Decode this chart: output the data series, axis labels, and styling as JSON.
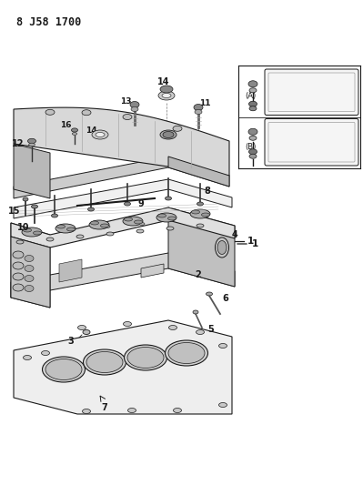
{
  "title": "8 J58 1700",
  "bg": "#ffffff",
  "lc": "#1a1a1a",
  "gray_light": "#cccccc",
  "gray_mid": "#999999",
  "gray_dark": "#555555",
  "fig_w": 3.99,
  "fig_h": 5.33,
  "dpi": 100,
  "valve_cover": {
    "color": "#e8e8e8",
    "dark": "#bbbbbb"
  },
  "head": {
    "color": "#dddddd",
    "dark": "#aaaaaa"
  },
  "gasket": {
    "color": "#f0f0f0"
  }
}
